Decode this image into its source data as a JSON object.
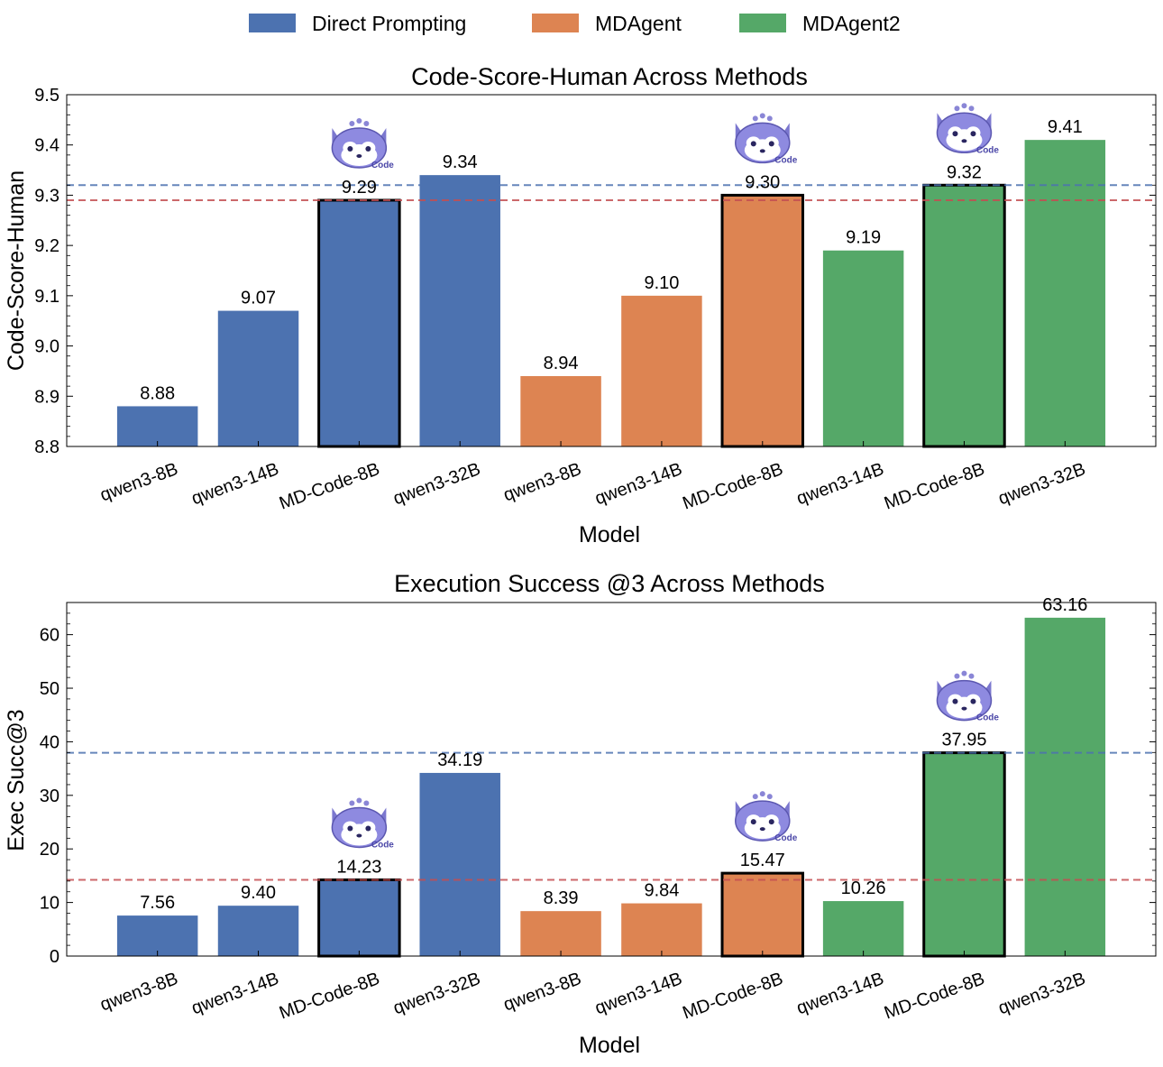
{
  "legend": {
    "items": [
      {
        "label": "Direct Prompting",
        "color": "#4C72B0"
      },
      {
        "label": "MDAgent",
        "color": "#DD8452"
      },
      {
        "label": "MDAgent2",
        "color": "#55A868"
      }
    ]
  },
  "chart_data": [
    {
      "type": "bar",
      "title": "Code-Score-Human Across Methods",
      "xlabel": "Model",
      "ylabel": "Code-Score-Human",
      "ylim": [
        8.8,
        9.5
      ],
      "yticks": [
        "8.8",
        "8.9",
        "9.0",
        "9.1",
        "9.2",
        "9.3",
        "9.4",
        "9.5"
      ],
      "categories": [
        "qwen3-8B",
        "qwen3-14B",
        "MD-Code-8B",
        "qwen3-32B",
        "qwen3-8B",
        "qwen3-14B",
        "MD-Code-8B",
        "qwen3-14B",
        "MD-Code-8B",
        "qwen3-32B"
      ],
      "groups": [
        "Direct Prompting",
        "Direct Prompting",
        "Direct Prompting",
        "Direct Prompting",
        "MDAgent",
        "MDAgent",
        "MDAgent",
        "MDAgent2",
        "MDAgent2",
        "MDAgent2"
      ],
      "values": [
        8.88,
        9.07,
        9.29,
        9.34,
        8.94,
        9.1,
        9.3,
        9.19,
        9.32,
        9.41
      ],
      "value_labels": [
        "8.88",
        "9.07",
        "9.29",
        "9.34",
        "8.94",
        "9.10",
        "9.30",
        "9.19",
        "9.32",
        "9.41"
      ],
      "highlighted": [
        2,
        6,
        8
      ],
      "badge_text": "Code",
      "reference_lines": [
        {
          "value": 9.32,
          "color": "#4C72B0",
          "style": "dashed"
        },
        {
          "value": 9.29,
          "color": "#C44E52",
          "style": "dashed"
        }
      ]
    },
    {
      "type": "bar",
      "title": "Execution Success @3 Across Methods",
      "xlabel": "Model",
      "ylabel": "Exec Succ@3",
      "ylim": [
        0,
        66
      ],
      "yticks": [
        "0",
        "10",
        "20",
        "30",
        "40",
        "50",
        "60"
      ],
      "categories": [
        "qwen3-8B",
        "qwen3-14B",
        "MD-Code-8B",
        "qwen3-32B",
        "qwen3-8B",
        "qwen3-14B",
        "MD-Code-8B",
        "qwen3-14B",
        "MD-Code-8B",
        "qwen3-32B"
      ],
      "groups": [
        "Direct Prompting",
        "Direct Prompting",
        "Direct Prompting",
        "Direct Prompting",
        "MDAgent",
        "MDAgent",
        "MDAgent",
        "MDAgent2",
        "MDAgent2",
        "MDAgent2"
      ],
      "values": [
        7.56,
        9.4,
        14.23,
        34.19,
        8.39,
        9.84,
        15.47,
        10.26,
        37.95,
        63.16
      ],
      "value_labels": [
        "7.56",
        "9.40",
        "14.23",
        "34.19",
        "8.39",
        "9.84",
        "15.47",
        "10.26",
        "37.95",
        "63.16"
      ],
      "highlighted": [
        2,
        6,
        8
      ],
      "badge_text": "Code",
      "reference_lines": [
        {
          "value": 37.95,
          "color": "#4C72B0",
          "style": "dashed"
        },
        {
          "value": 14.23,
          "color": "#C44E52",
          "style": "dashed"
        }
      ]
    }
  ]
}
